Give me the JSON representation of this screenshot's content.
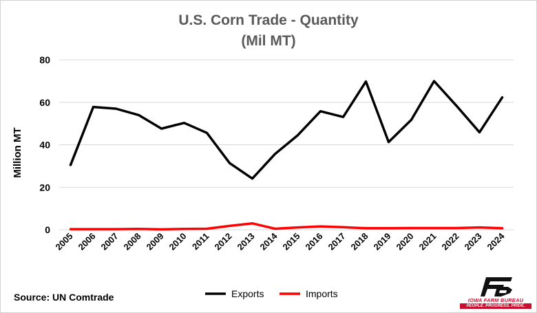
{
  "chart_data": {
    "type": "line",
    "title": "U.S. Corn Trade - Quantity",
    "subtitle": "(Mil MT)",
    "ylabel": "Million MT",
    "xlabel": "",
    "ylim": [
      0,
      80
    ],
    "yticks": [
      0,
      20,
      40,
      60,
      80
    ],
    "grid": true,
    "legend_position": "bottom",
    "categories": [
      "2005",
      "2006",
      "2007",
      "2008",
      "2009",
      "2010",
      "2011",
      "2012",
      "2013",
      "2014",
      "2015",
      "2016",
      "2017",
      "2018",
      "2019",
      "2020",
      "2021",
      "2022",
      "2023",
      "2024"
    ],
    "series": [
      {
        "name": "Exports",
        "color": "#000000",
        "values": [
          30.5,
          57.8,
          57.0,
          54.0,
          47.6,
          50.3,
          45.6,
          31.4,
          24.1,
          35.7,
          44.5,
          55.8,
          53.1,
          69.8,
          41.3,
          51.8,
          70.0,
          58.2,
          45.9,
          62.3
        ]
      },
      {
        "name": "Imports",
        "color": "#ff0000",
        "values": [
          0.3,
          0.3,
          0.3,
          0.4,
          0.2,
          0.4,
          0.5,
          1.8,
          3.0,
          0.5,
          1.1,
          1.6,
          1.2,
          0.7,
          0.7,
          0.8,
          0.8,
          0.8,
          1.1,
          0.7
        ]
      }
    ]
  },
  "footer": {
    "source": "Source: UN Comtrade"
  },
  "logo": {
    "mark": "FB",
    "name": "IOWA FARM BUREAU",
    "tagline": "PEOPLE. PROGRESS. PRIDE."
  }
}
